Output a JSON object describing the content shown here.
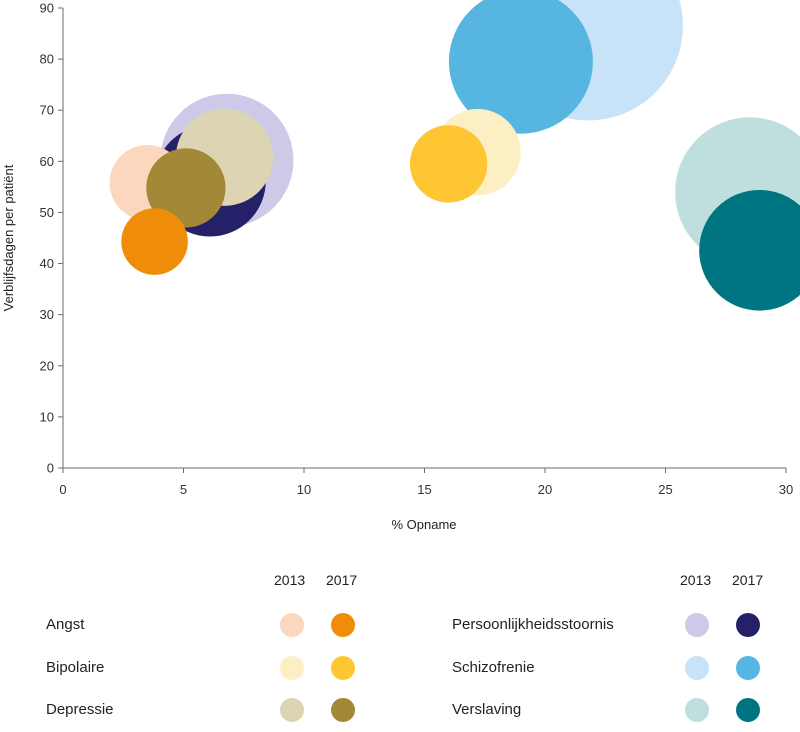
{
  "chart_data": {
    "type": "bubble",
    "title": "",
    "xlabel": "% Opname",
    "ylabel": "Verblijfsdagen per patiënt",
    "xlim": [
      0,
      30
    ],
    "ylim": [
      0,
      90
    ],
    "xticks": [
      0,
      5,
      10,
      15,
      20,
      25,
      30
    ],
    "yticks": [
      0,
      10,
      20,
      30,
      40,
      50,
      60,
      70,
      80,
      90
    ],
    "grid": false,
    "legend": {
      "years": [
        "2013",
        "2017"
      ],
      "left": [
        {
          "name": "Angst",
          "color_2013": "#fbd7bd",
          "color_2017": "#ef8d0a"
        },
        {
          "name": "Bipolaire",
          "color_2013": "#fdefc4",
          "color_2017": "#fdc632"
        },
        {
          "name": "Depressie",
          "color_2013": "#ddd4b4",
          "color_2017": "#a38837"
        }
      ],
      "right": [
        {
          "name": "Persoonlijkheidsstoornis",
          "color_2013": "#cdc9e6",
          "color_2017": "#242169"
        },
        {
          "name": "Schizofrenie",
          "color_2013": "#c8e3f7",
          "color_2017": "#56b5e1"
        },
        {
          "name": "Verslaving",
          "color_2013": "#bedfdd",
          "color_2017": "#007582"
        }
      ]
    },
    "series": [
      {
        "name": "Schizofrenie",
        "year": "2013",
        "x": 21.8,
        "y": 86.5,
        "size": 10.5,
        "color": "#c8e3f7"
      },
      {
        "name": "Verslaving",
        "year": "2013",
        "x": 28.5,
        "y": 54.0,
        "size": 8.3,
        "color": "#bedfdd"
      },
      {
        "name": "Persoonlijkheidsstoornis",
        "year": "2013",
        "x": 6.8,
        "y": 60.2,
        "size": 7.4,
        "color": "#cdc9e6"
      },
      {
        "name": "Schizofrenie",
        "year": "2017",
        "x": 19.0,
        "y": 79.5,
        "size": 8.0,
        "color": "#56b5e1"
      },
      {
        "name": "Verslaving",
        "year": "2017",
        "x": 28.9,
        "y": 42.6,
        "size": 6.7,
        "color": "#007582"
      },
      {
        "name": "Persoonlijkheidsstoornis",
        "year": "2017",
        "x": 6.1,
        "y": 56.2,
        "size": 6.2,
        "color": "#242169"
      },
      {
        "name": "Bipolaire",
        "year": "2013",
        "x": 17.2,
        "y": 61.8,
        "size": 4.8,
        "color": "#fdefc4"
      },
      {
        "name": "Depressie",
        "year": "2013",
        "x": 6.7,
        "y": 60.8,
        "size": 5.4,
        "color": "#ddd4b4"
      },
      {
        "name": "Angst",
        "year": "2013",
        "x": 3.5,
        "y": 55.8,
        "size": 4.2,
        "color": "#fbd7bd"
      },
      {
        "name": "Bipolaire",
        "year": "2017",
        "x": 16.0,
        "y": 59.5,
        "size": 4.3,
        "color": "#fdc632"
      },
      {
        "name": "Depressie",
        "year": "2017",
        "x": 5.1,
        "y": 54.8,
        "size": 4.4,
        "color": "#a38837"
      },
      {
        "name": "Angst",
        "year": "2017",
        "x": 3.8,
        "y": 44.3,
        "size": 3.7,
        "color": "#ef8d0a"
      }
    ]
  }
}
